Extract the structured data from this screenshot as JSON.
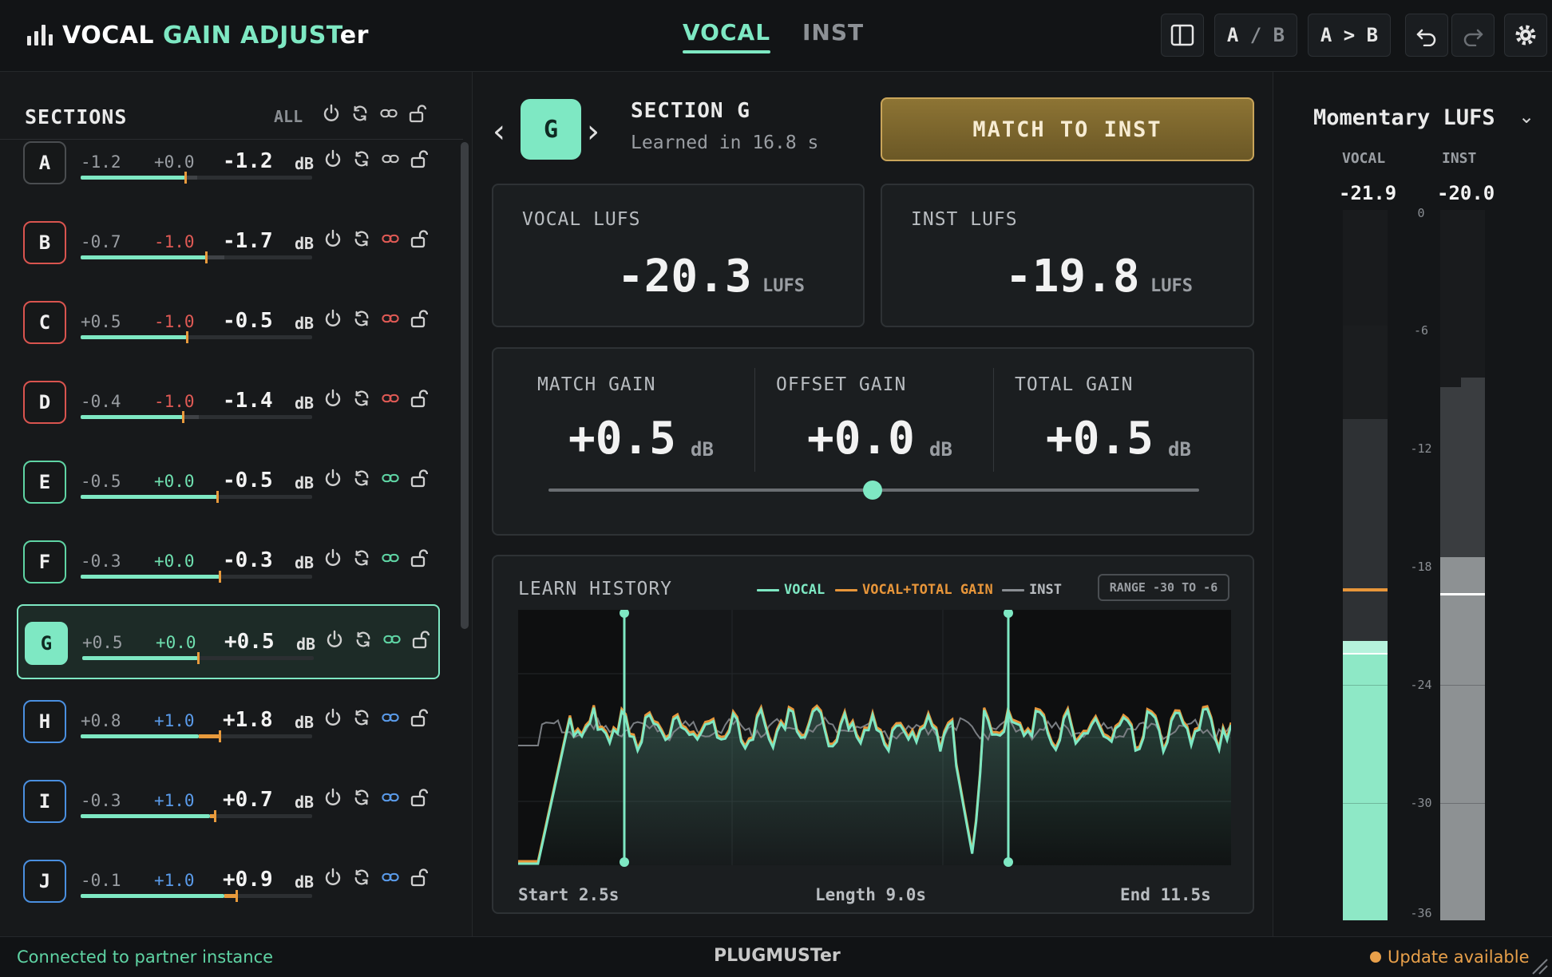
{
  "app": {
    "brand_part1": "VOCAL",
    "brand_part2": "GAIN ADJUST",
    "brand_part3": "er"
  },
  "mode_tabs": [
    {
      "label": "VOCAL",
      "active": true
    },
    {
      "label": "INST",
      "active": false
    }
  ],
  "toolbar": {
    "ab_a": "A",
    "ab_sep": "/",
    "ab_b": "B",
    "a_to_b": "A > B",
    "icons": [
      "split-panel-icon",
      "undo-icon",
      "redo-icon",
      "gear-icon"
    ]
  },
  "sections_panel": {
    "title": "SECTIONS",
    "all_label": "ALL",
    "rows": [
      {
        "letter": "A",
        "v1": "-1.2",
        "v2": "+0.0",
        "v3": "-1.2",
        "unit": "dB",
        "color": "#4a4d50",
        "v2_color": "#9a9ea3",
        "fill_pct": 0.45,
        "gray_pct": 0.05,
        "orange_pct": 0.0,
        "link_color": "#c8c8c8"
      },
      {
        "letter": "B",
        "v1": "-0.7",
        "v2": "-1.0",
        "v3": "-1.7",
        "unit": "dB",
        "color": "#d9544f",
        "v2_color": "#e05a55",
        "fill_pct": 0.54,
        "gray_pct": 0.08,
        "orange_pct": 0.0,
        "link_color": "#e05a55"
      },
      {
        "letter": "C",
        "v1": "+0.5",
        "v2": "-1.0",
        "v3": "-0.5",
        "unit": "dB",
        "color": "#d9544f",
        "v2_color": "#e05a55",
        "fill_pct": 0.46,
        "gray_pct": 0.0,
        "orange_pct": 0.0,
        "link_color": "#e05a55"
      },
      {
        "letter": "D",
        "v1": "-0.4",
        "v2": "-1.0",
        "v3": "-1.4",
        "unit": "dB",
        "color": "#d9544f",
        "v2_color": "#e05a55",
        "fill_pct": 0.44,
        "gray_pct": 0.07,
        "orange_pct": 0.0,
        "link_color": "#e05a55"
      },
      {
        "letter": "E",
        "v1": "-0.5",
        "v2": "+0.0",
        "v3": "-0.5",
        "unit": "dB",
        "color": "#5fd4a4",
        "v2_color": "#6fe0b0",
        "fill_pct": 0.59,
        "gray_pct": 0.0,
        "orange_pct": 0.0,
        "link_color": "#5fd4a4"
      },
      {
        "letter": "F",
        "v1": "-0.3",
        "v2": "+0.0",
        "v3": "-0.3",
        "unit": "dB",
        "color": "#5fd4a4",
        "v2_color": "#6fe0b0",
        "fill_pct": 0.6,
        "gray_pct": 0.0,
        "orange_pct": 0.0,
        "link_color": "#5fd4a4"
      },
      {
        "letter": "G",
        "v1": "+0.5",
        "v2": "+0.0",
        "v3": "+0.5",
        "unit": "dB",
        "color": "#7ee8c3",
        "v2_color": "#6fe0b0",
        "fill_pct": 0.5,
        "gray_pct": 0.0,
        "orange_pct": 0.0,
        "link_color": "#5fd4a4",
        "selected": true
      },
      {
        "letter": "H",
        "v1": "+0.8",
        "v2": "+1.0",
        "v3": "+1.8",
        "unit": "dB",
        "color": "#4a8fe0",
        "v2_color": "#5a9bea",
        "fill_pct": 0.51,
        "gray_pct": 0.0,
        "orange_pct": 0.09,
        "link_color": "#5a9bea"
      },
      {
        "letter": "I",
        "v1": "-0.3",
        "v2": "+1.0",
        "v3": "+0.7",
        "unit": "dB",
        "color": "#4a8fe0",
        "v2_color": "#5a9bea",
        "fill_pct": 0.56,
        "gray_pct": 0.0,
        "orange_pct": 0.02,
        "link_color": "#5a9bea"
      },
      {
        "letter": "J",
        "v1": "-0.1",
        "v2": "+1.0",
        "v3": "+0.9",
        "unit": "dB",
        "color": "#4a8fe0",
        "v2_color": "#5a9bea",
        "fill_pct": 0.62,
        "gray_pct": 0.0,
        "orange_pct": 0.05,
        "link_color": "#5a9bea"
      }
    ]
  },
  "section_detail": {
    "letter": "G",
    "name": "SECTION G",
    "learned": "Learned in 16.8 s",
    "match_button": "MATCH TO INST",
    "vocal_lufs": {
      "label": "VOCAL LUFS",
      "value": "-20.3",
      "unit": "LUFS"
    },
    "inst_lufs": {
      "label": "INST LUFS",
      "value": "-19.8",
      "unit": "LUFS"
    },
    "gains": [
      {
        "label": "MATCH GAIN",
        "value": "+0.5",
        "unit": "dB"
      },
      {
        "label": "OFFSET GAIN",
        "value": "+0.0",
        "unit": "dB"
      },
      {
        "label": "TOTAL GAIN",
        "value": "+0.5",
        "unit": "dB"
      }
    ],
    "offset_slider_fraction": 0.5
  },
  "learn_history": {
    "title": "LEARN HISTORY",
    "legend": [
      {
        "label": "VOCAL",
        "color": "#7ee8c3"
      },
      {
        "label": "VOCAL+TOTAL GAIN",
        "color": "#e8963a"
      },
      {
        "label": "INST",
        "color": "#8a8e93"
      }
    ],
    "range": "RANGE -30 TO -6",
    "start": "Start 2.5s",
    "length": "Length 9.0s",
    "end": "End 11.5s"
  },
  "meters": {
    "title": "Momentary LUFS",
    "vocal_label": "VOCAL",
    "inst_label": "INST",
    "vocal_value": "-21.9",
    "inst_value": "-20.0",
    "scale": [
      "0",
      "-6",
      "-12",
      "-18",
      "-24",
      "-30",
      "-36"
    ]
  },
  "status": {
    "connection": "Connected to partner instance",
    "vendor": "PLUGMUSTer",
    "update": "Update available"
  }
}
